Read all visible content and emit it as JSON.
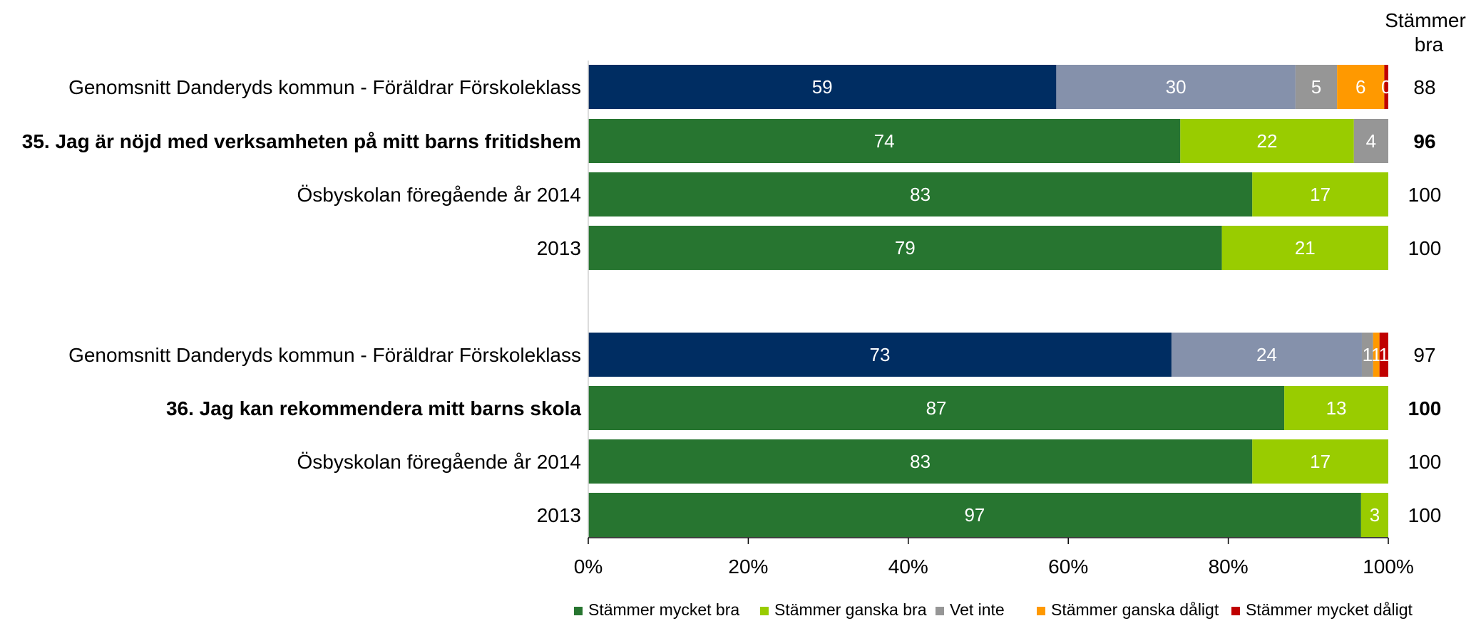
{
  "chart_data": {
    "type": "bar",
    "orientation": "horizontal",
    "stacked": true,
    "normalized": true,
    "xlim": [
      0,
      100
    ],
    "x_ticks": [
      "0%",
      "20%",
      "40%",
      "60%",
      "80%",
      "100%"
    ],
    "grid": false,
    "legend_placement": "bottom",
    "series": [
      {
        "name": "Stämmer mycket bra",
        "color": "#277530"
      },
      {
        "name": "Stämmer ganska bra",
        "color": "#99CC00"
      },
      {
        "name": "Vet inte",
        "color": "#969696"
      },
      {
        "name": "Stämmer ganska dåligt",
        "color": "#FF9900"
      },
      {
        "name": "Stämmer mycket dåligt",
        "color": "#C00000"
      }
    ],
    "right_column_header": [
      "Stämmer",
      "bra"
    ],
    "groups": [
      {
        "rows": [
          {
            "label": "Genomsnitt Danderyds kommun - Föräldrar Förskoleklass",
            "bold": false,
            "palette": "benchmark",
            "values": [
              58.5,
              29.9,
              5.2,
              5.9,
              0.5
            ],
            "labels": [
              "59",
              "30",
              "5",
              "6",
              "0"
            ],
            "right": "88"
          },
          {
            "label": "35. Jag är nöjd med verksamheten på mitt barns fritidshem",
            "bold": true,
            "palette": "standard",
            "values": [
              74,
              21.7,
              4.3,
              0,
              0
            ],
            "labels": [
              "74",
              "22",
              "4",
              "0",
              ""
            ],
            "right": "96"
          },
          {
            "label": "Ösbyskolan föregående år 2014",
            "bold": false,
            "palette": "standard",
            "values": [
              83,
              17,
              0,
              0,
              0
            ],
            "labels": [
              "83",
              "17",
              "0",
              "",
              ""
            ],
            "right": "100"
          },
          {
            "label": "2013",
            "bold": false,
            "palette": "standard",
            "values": [
              79.2,
              20.8,
              0,
              0,
              0
            ],
            "labels": [
              "79",
              "21",
              "0",
              "",
              ""
            ],
            "right": "100"
          }
        ]
      },
      {
        "rows": [
          {
            "label": "Genomsnitt Danderyds kommun - Föräldrar Förskoleklass",
            "bold": false,
            "palette": "benchmark",
            "values": [
              72.9,
              23.8,
              1.4,
              0.8,
              1.1
            ],
            "labels": [
              "73",
              "24",
              "1",
              "1",
              "1"
            ],
            "right": "97"
          },
          {
            "label": "36. Jag kan rekommendera mitt barns skola",
            "bold": true,
            "palette": "standard",
            "values": [
              87,
              13,
              0,
              0,
              0
            ],
            "labels": [
              "87",
              "13",
              "0",
              "",
              ""
            ],
            "right": "100"
          },
          {
            "label": "Ösbyskolan föregående år 2014",
            "bold": false,
            "palette": "standard",
            "values": [
              83,
              17,
              0,
              0,
              0
            ],
            "labels": [
              "83",
              "17",
              "0",
              "",
              ""
            ],
            "right": "100"
          },
          {
            "label": "2013",
            "bold": false,
            "palette": "standard",
            "values": [
              96.6,
              3.4,
              0,
              0,
              0
            ],
            "labels": [
              "97",
              "3",
              "0",
              "",
              ""
            ],
            "right": "100"
          }
        ]
      }
    ],
    "benchmark_colors": [
      "#002D62",
      "#8591AB",
      "#969696",
      "#FF9900",
      "#C00000"
    ]
  }
}
